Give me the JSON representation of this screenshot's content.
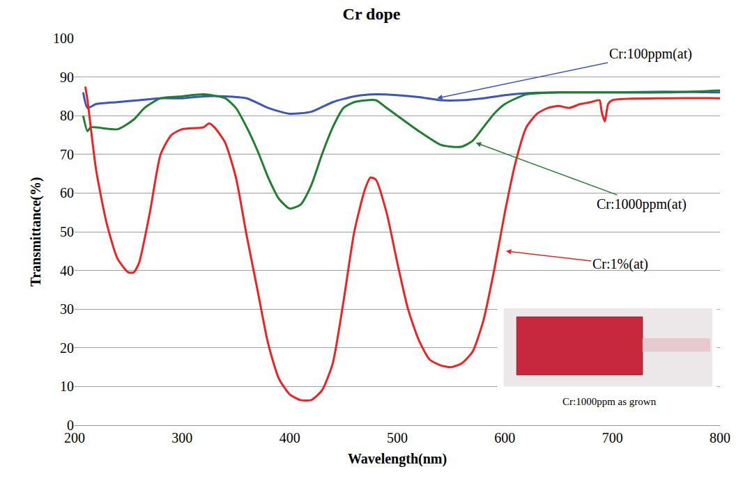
{
  "chart_data": {
    "type": "line",
    "title": "Cr dope",
    "x_label": "Wavelength(nm)",
    "y_label": "Transmittance(%)",
    "xlim": [
      200,
      800
    ],
    "xticks": [
      200,
      300,
      400,
      500,
      600,
      700,
      800
    ],
    "ylim": [
      0,
      100
    ],
    "yticks": [
      0,
      10,
      20,
      30,
      40,
      50,
      60,
      70,
      80,
      90,
      100
    ],
    "grid": true,
    "series": [
      {
        "name": "Cr:100ppm(at)",
        "color": "#3a55c0",
        "x": [
          208,
          212,
          220,
          240,
          260,
          280,
          300,
          320,
          340,
          360,
          380,
          400,
          420,
          440,
          460,
          480,
          500,
          520,
          540,
          560,
          580,
          600,
          620,
          650,
          700,
          750,
          800
        ],
        "values": [
          86,
          82,
          83,
          83.5,
          84,
          84.5,
          84.5,
          85,
          85,
          84.5,
          82,
          80.5,
          81,
          83.5,
          85,
          85.5,
          85.3,
          84.8,
          84,
          84,
          84.5,
          85.3,
          85.8,
          86,
          86,
          86.2,
          86
        ]
      },
      {
        "name": "Cr:1000ppm(at)",
        "color": "#1f7f2e",
        "x": [
          208,
          212,
          215,
          240,
          255,
          265,
          280,
          300,
          320,
          340,
          350,
          360,
          370,
          380,
          390,
          400,
          410,
          420,
          430,
          440,
          450,
          460,
          480,
          490,
          500,
          520,
          540,
          550,
          560,
          570,
          580,
          590,
          600,
          620,
          650,
          700,
          750,
          800
        ],
        "values": [
          80,
          76,
          77,
          76.5,
          79,
          82,
          84.5,
          85,
          85.5,
          84.5,
          82,
          77,
          71,
          64,
          58.5,
          56,
          57,
          62,
          70,
          77,
          82,
          83.5,
          84,
          82,
          80,
          76,
          72.5,
          72,
          72,
          73.5,
          77,
          80.5,
          83,
          85.5,
          86,
          86,
          86,
          86.5
        ]
      },
      {
        "name": "Cr:1%(at)",
        "color": "#ee2222",
        "x": [
          210,
          212,
          220,
          230,
          240,
          250,
          255,
          260,
          270,
          280,
          290,
          300,
          320,
          325,
          330,
          340,
          350,
          360,
          370,
          380,
          390,
          400,
          410,
          420,
          430,
          440,
          450,
          460,
          470,
          475,
          480,
          490,
          500,
          510,
          520,
          530,
          540,
          550,
          560,
          570,
          580,
          590,
          600,
          610,
          620,
          630,
          640,
          650,
          660,
          670,
          680,
          688,
          690,
          693,
          696,
          700,
          750,
          800
        ],
        "values": [
          87.5,
          84,
          66,
          52,
          43,
          39.5,
          39.5,
          42,
          55,
          70,
          75,
          76.5,
          77,
          78,
          77,
          73,
          64,
          49,
          35,
          21,
          12,
          8,
          6.5,
          6.5,
          9,
          16,
          32,
          50,
          61,
          64,
          63.5,
          55,
          42,
          30,
          22,
          17,
          15.5,
          15,
          16,
          19,
          27,
          40,
          55,
          68,
          77,
          80.5,
          82,
          82.5,
          82,
          83,
          83.5,
          84,
          81,
          78.5,
          83,
          84,
          84.5,
          84.5
        ]
      }
    ],
    "annotations": [
      {
        "text": "Cr:100ppm(at)",
        "x": 537,
        "y": 84.5,
        "color": "#3a55c0"
      },
      {
        "text": "Cr:1000ppm(at)",
        "x": 573,
        "y": 73,
        "color": "#1f7f2e"
      },
      {
        "text": "Cr:1%(at)",
        "x": 601,
        "y": 45,
        "color": "#ee2222"
      }
    ],
    "caption": "Cr:1000ppm as grown"
  }
}
